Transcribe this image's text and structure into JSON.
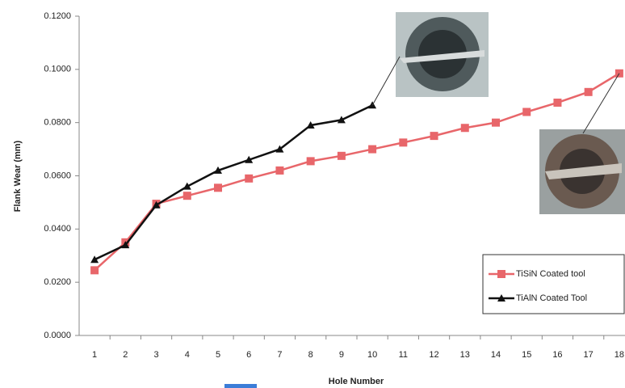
{
  "chart_data": {
    "type": "line",
    "y_label": "Flank Wear (mm)",
    "x_label": "Hole Number",
    "categories": [
      "1",
      "2",
      "3",
      "4",
      "5",
      "6",
      "7",
      "8",
      "9",
      "10",
      "11",
      "12",
      "13",
      "14",
      "15",
      "16",
      "17",
      "18"
    ],
    "series": [
      {
        "name": "TiSiN Coated tool",
        "color": "#e8666a",
        "marker": "square",
        "values": [
          0.0245,
          0.035,
          0.0495,
          0.0525,
          0.0555,
          0.059,
          0.062,
          0.0655,
          0.0675,
          0.07,
          0.0725,
          0.075,
          0.078,
          0.08,
          0.084,
          0.0875,
          0.0915,
          0.0985
        ]
      },
      {
        "name": "TiAlN Coated Tool",
        "color": "#111111",
        "marker": "triangle",
        "values": [
          0.0285,
          0.034,
          0.049,
          0.056,
          0.062,
          0.066,
          0.07,
          0.079,
          0.081,
          0.0865,
          null,
          null,
          null,
          null,
          null,
          null,
          null,
          null
        ]
      }
    ],
    "ylim": [
      0,
      0.12
    ],
    "yticks": [
      {
        "value": 0,
        "label": "0.0000"
      },
      {
        "value": 0.02,
        "label": "0.0200"
      },
      {
        "value": 0.04,
        "label": "0.0400"
      },
      {
        "value": 0.06,
        "label": "0.0600"
      },
      {
        "value": 0.08,
        "label": "0.0800"
      },
      {
        "value": 0.1,
        "label": "0.1000"
      },
      {
        "value": 0.12,
        "label": "0.1200"
      }
    ],
    "grid": false,
    "legend": "lower right"
  }
}
